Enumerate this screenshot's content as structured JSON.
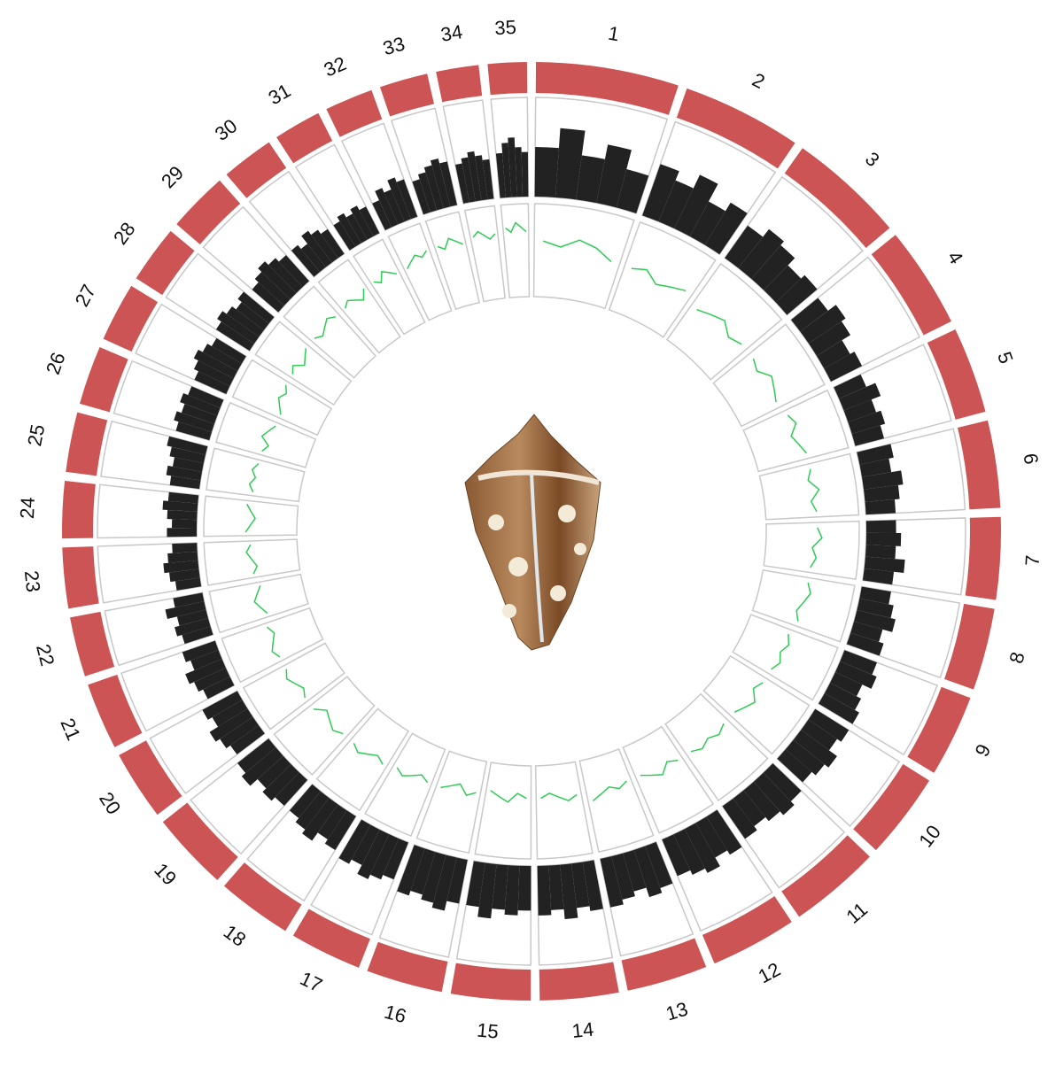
{
  "chart_data": {
    "type": "circos",
    "categories": [
      "1",
      "2",
      "3",
      "4",
      "5",
      "6",
      "7",
      "8",
      "9",
      "10",
      "11",
      "12",
      "13",
      "14",
      "15",
      "16",
      "17",
      "18",
      "19",
      "20",
      "21",
      "22",
      "23",
      "24",
      "25",
      "26",
      "27",
      "28",
      "29",
      "30",
      "31",
      "32",
      "33",
      "34",
      "35"
    ],
    "values": [
      19.8,
      16.6,
      16.2,
      14.1,
      12,
      12.1,
      11.4,
      11.4,
      11.4,
      12,
      12.7,
      12,
      11.2,
      10.9,
      11,
      10.6,
      10,
      10.4,
      10.9,
      9.7,
      9.3,
      8.3,
      8.4,
      7.9,
      8.3,
      8.2,
      8.2,
      8,
      8.4,
      7.3,
      6.6,
      6.7,
      6.7,
      5.9,
      5.4
    ],
    "color": "#cd5454",
    "tracks": [
      {
        "color": "#222222",
        "ylim": [
          0,
          1
        ],
        "values": [
          [
            0.5,
            0.7,
            0.45,
            0.6,
            0.4
          ],
          [
            0.55,
            0.45,
            0.6,
            0.4,
            0.5
          ],
          [
            0.4,
            0.5,
            0.45,
            0.35,
            0.4
          ],
          [
            0.35,
            0.45,
            0.4,
            0.3,
            0.35
          ],
          [
            0.3,
            0.4,
            0.3,
            0.35,
            0.3
          ],
          [
            0.35,
            0.3,
            0.4,
            0.35,
            0.3
          ],
          [
            0.3,
            0.35,
            0.3,
            0.4,
            0.3
          ],
          [
            0.3,
            0.35,
            0.4,
            0.3,
            0.35
          ],
          [
            0.35,
            0.4,
            0.3,
            0.35,
            0.4
          ],
          [
            0.4,
            0.35,
            0.45,
            0.4,
            0.35
          ],
          [
            0.4,
            0.45,
            0.4,
            0.35,
            0.4
          ],
          [
            0.45,
            0.4,
            0.5,
            0.45,
            0.4
          ],
          [
            0.45,
            0.5,
            0.4,
            0.45,
            0.5
          ],
          [
            0.5,
            0.45,
            0.55,
            0.45,
            0.5
          ],
          [
            0.45,
            0.5,
            0.45,
            0.55,
            0.45
          ],
          [
            0.45,
            0.55,
            0.5,
            0.45,
            0.5
          ],
          [
            0.4,
            0.45,
            0.5,
            0.4,
            0.45
          ],
          [
            0.4,
            0.35,
            0.45,
            0.4,
            0.35
          ],
          [
            0.35,
            0.4,
            0.35,
            0.45,
            0.4
          ],
          [
            0.35,
            0.4,
            0.45,
            0.35,
            0.4
          ],
          [
            0.3,
            0.35,
            0.4,
            0.3,
            0.35
          ],
          [
            0.3,
            0.35,
            0.3,
            0.4,
            0.3
          ],
          [
            0.25,
            0.3,
            0.35,
            0.3,
            0.25
          ],
          [
            0.3,
            0.25,
            0.3,
            0.35,
            0.3
          ],
          [
            0.3,
            0.35,
            0.3,
            0.35,
            0.4
          ],
          [
            0.35,
            0.4,
            0.35,
            0.4,
            0.35
          ],
          [
            0.35,
            0.4,
            0.45,
            0.4,
            0.35
          ],
          [
            0.4,
            0.45,
            0.4,
            0.35,
            0.4
          ],
          [
            0.35,
            0.4,
            0.45,
            0.4,
            0.35
          ],
          [
            0.35,
            0.3,
            0.4,
            0.35,
            0.3
          ],
          [
            0.3,
            0.35,
            0.3,
            0.35,
            0.3
          ],
          [
            0.3,
            0.4,
            0.35,
            0.45,
            0.4
          ],
          [
            0.35,
            0.4,
            0.45,
            0.5,
            0.45
          ],
          [
            0.4,
            0.45,
            0.5,
            0.45,
            0.4
          ],
          [
            0.45,
            0.55,
            0.6,
            0.5,
            0.45
          ]
        ]
      },
      {
        "color": "#2ecc55",
        "ylim": [
          0,
          1
        ],
        "values": [
          [
            0.6,
            0.55,
            0.65,
            0.6,
            0.5
          ],
          [
            0.5,
            0.55,
            0.45,
            0.5,
            0.55
          ],
          [
            0.45,
            0.5,
            0.55,
            0.45,
            0.5
          ],
          [
            0.5,
            0.45,
            0.55,
            0.5,
            0.45
          ],
          [
            0.5,
            0.55,
            0.45,
            0.5,
            0.55
          ],
          [
            0.55,
            0.5,
            0.6,
            0.5,
            0.55
          ],
          [
            0.55,
            0.6,
            0.5,
            0.55,
            0.5
          ],
          [
            0.5,
            0.55,
            0.5,
            0.45,
            0.5
          ],
          [
            0.45,
            0.5,
            0.45,
            0.5,
            0.45
          ],
          [
            0.45,
            0.4,
            0.5,
            0.45,
            0.4
          ],
          [
            0.4,
            0.45,
            0.4,
            0.45,
            0.4
          ],
          [
            0.4,
            0.35,
            0.45,
            0.4,
            0.35
          ],
          [
            0.35,
            0.4,
            0.35,
            0.4,
            0.45
          ],
          [
            0.35,
            0.4,
            0.35,
            0.3,
            0.35
          ],
          [
            0.35,
            0.3,
            0.4,
            0.35,
            0.3
          ],
          [
            0.35,
            0.4,
            0.3,
            0.35,
            0.4
          ],
          [
            0.4,
            0.35,
            0.4,
            0.45,
            0.4
          ],
          [
            0.45,
            0.4,
            0.45,
            0.5,
            0.45
          ],
          [
            0.45,
            0.5,
            0.45,
            0.4,
            0.5
          ],
          [
            0.5,
            0.45,
            0.5,
            0.55,
            0.5
          ],
          [
            0.5,
            0.55,
            0.5,
            0.45,
            0.5
          ],
          [
            0.45,
            0.5,
            0.55,
            0.5,
            0.45
          ],
          [
            0.5,
            0.45,
            0.5,
            0.55,
            0.5
          ],
          [
            0.55,
            0.5,
            0.45,
            0.5,
            0.55
          ],
          [
            0.5,
            0.55,
            0.5,
            0.55,
            0.5
          ],
          [
            0.5,
            0.45,
            0.55,
            0.5,
            0.45
          ],
          [
            0.45,
            0.5,
            0.55,
            0.5,
            0.55
          ],
          [
            0.55,
            0.6,
            0.5,
            0.55,
            0.6
          ],
          [
            0.6,
            0.55,
            0.6,
            0.65,
            0.6
          ],
          [
            0.6,
            0.65,
            0.6,
            0.55,
            0.65
          ],
          [
            0.65,
            0.6,
            0.7,
            0.65,
            0.6
          ],
          [
            0.6,
            0.65,
            0.7,
            0.65,
            0.7
          ],
          [
            0.7,
            0.65,
            0.75,
            0.7,
            0.65
          ],
          [
            0.7,
            0.75,
            0.7,
            0.65,
            0.7
          ],
          [
            0.75,
            0.7,
            0.8,
            0.75,
            0.7
          ]
        ]
      }
    ]
  }
}
